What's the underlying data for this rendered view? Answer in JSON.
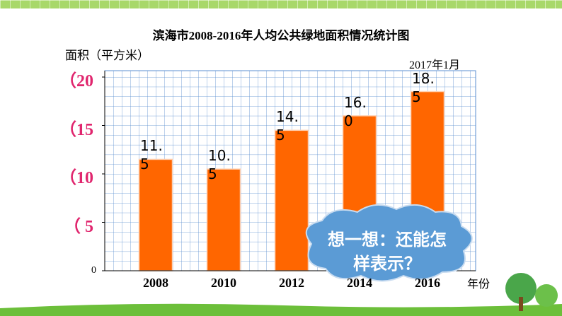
{
  "chart_data": {
    "type": "bar",
    "title": "滨海市2008-2016年人均公共绿地面积情况统计图",
    "y_label": "面积（平方米）",
    "x_label": "年份",
    "annotation": "2017年1月",
    "callout": "想一想：还能怎样表示？",
    "categories": [
      "2008",
      "2010",
      "2012",
      "2014",
      "2016"
    ],
    "values": [
      11.5,
      10.5,
      14.5,
      16.0,
      18.5
    ],
    "value_labels": [
      "11.5",
      "10.5",
      "14.5",
      "16.0",
      "18.5"
    ],
    "color": "#ff6600",
    "ylim": [
      0,
      20
    ],
    "yticks": [
      0,
      {
        "value": 5,
        "label": "（ 5"
      },
      {
        "value": 10,
        "label": "（10"
      },
      {
        "value": 15,
        "label": "（15"
      },
      {
        "value": 20,
        "label": "（20"
      }
    ],
    "grid": true
  }
}
